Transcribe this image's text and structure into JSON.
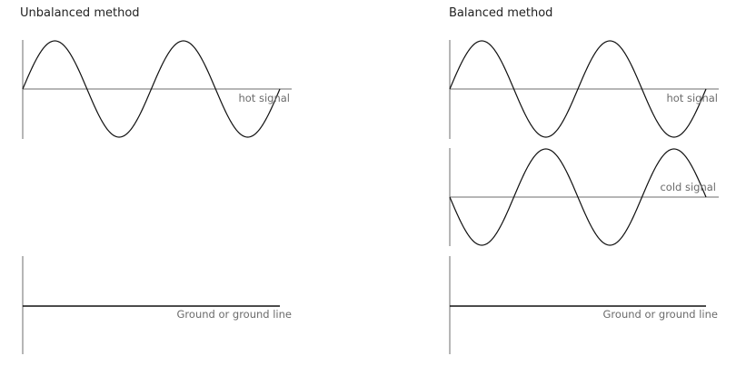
{
  "panels": {
    "unbalanced": {
      "title": "Unbalanced method",
      "hot_label": "hot signal",
      "ground_label": "Ground or ground line"
    },
    "balanced": {
      "title": "Balanced method",
      "hot_label": "hot signal",
      "cold_label": "cold signal",
      "ground_label": "Ground or ground line"
    }
  },
  "colors": {
    "wave": "#111111",
    "axis": "#6e6e6e",
    "label": "#6b6b6b"
  }
}
